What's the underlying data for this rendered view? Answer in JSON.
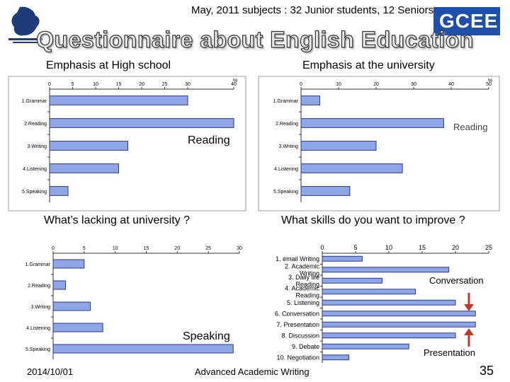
{
  "header": {
    "meta": "May, 2011 subjects : 32 Junior students, 12 Seniors",
    "title": "Questionnaire about English Education",
    "logo_right_text": "GCEE"
  },
  "footer": {
    "date": "2014/10/01",
    "title": "Advanced Academic Writing",
    "page": "35"
  },
  "colors": {
    "bar_fill": "#8ea6e6",
    "bar_stroke": "#2b3a8a",
    "arrow": "#c0392b"
  },
  "callouts": {
    "reading": "Reading",
    "reading2": "Reading",
    "speaking": "Speaking",
    "conversation": "Conversation",
    "presentation": "Presentation"
  },
  "chart_data": [
    {
      "type": "bar",
      "orientation": "horizontal",
      "title": "Emphasis at High school",
      "categories": [
        "1.Grammar",
        "2.Reading",
        "3.Writing",
        "4.Listening",
        "5.Speaking"
      ],
      "values": [
        30,
        40,
        17,
        15,
        4
      ],
      "xlim": [
        0,
        40
      ],
      "xticks": [
        "0",
        "5",
        "10",
        "15",
        "20",
        "25",
        "30",
        "40"
      ],
      "unit": "%"
    },
    {
      "type": "bar",
      "orientation": "horizontal",
      "title": "Emphasis at the university",
      "categories": [
        "1.Grammar",
        "2.Reading",
        "3.Writing",
        "4.Listening",
        "5.Speaking"
      ],
      "values": [
        5,
        38,
        20,
        27,
        13
      ],
      "xlim": [
        0,
        50
      ],
      "xticks": [
        "0",
        "10",
        "20",
        "30",
        "40",
        "50"
      ],
      "unit": "%"
    },
    {
      "type": "bar",
      "orientation": "horizontal",
      "title": "What’s lacking at university ?",
      "categories": [
        "1.Grammar",
        "2.Reading",
        "3.Writing",
        "4.Listening",
        "5.Speaking"
      ],
      "values": [
        5,
        2,
        6,
        8,
        29
      ],
      "xlim": [
        0,
        30
      ],
      "xticks": [
        "0",
        "5",
        "10",
        "15",
        "20",
        "25",
        "30"
      ]
    },
    {
      "type": "bar",
      "orientation": "horizontal",
      "title": "What skills do you want to improve ?",
      "categories": [
        "1. email Writing",
        "2. Academic Writing",
        "3. Daily life Reading",
        "4. Academic Reading",
        "5. Listening",
        "6. Conversation",
        "7. Presentation",
        "8. Discussion",
        "9. Debate",
        "10. Negotiation"
      ],
      "values": [
        6,
        19,
        9,
        14,
        20,
        23,
        23,
        20,
        13,
        4
      ],
      "xlim": [
        0,
        25
      ],
      "xticks": [
        "0",
        "5",
        "10",
        "15",
        "20",
        "25"
      ]
    }
  ]
}
